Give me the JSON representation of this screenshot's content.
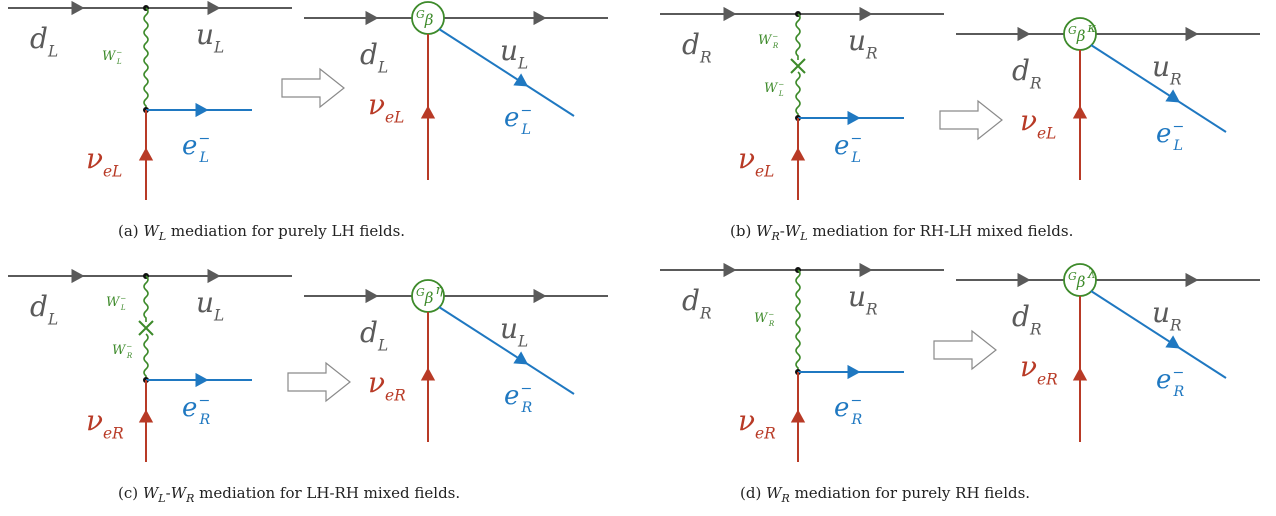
{
  "colors": {
    "quark": "#5a5a5a",
    "neutrino": "#b83a26",
    "electron": "#1f78c1",
    "boson": "#3d8a2a",
    "arrow_outline": "#8a8a8a"
  },
  "panels": [
    {
      "id": "a",
      "caption_prefix": "(a) ",
      "caption_vars": [
        {
          "base": "W",
          "sub": "L"
        }
      ],
      "caption_rest": " mediation for purely LH fields.",
      "quark_in": {
        "base": "d",
        "sub": "L"
      },
      "quark_out": {
        "base": "u",
        "sub": "L"
      },
      "boson_top": {
        "base": "W",
        "sub": "L",
        "sup": "−"
      },
      "boson_bottom": null,
      "neutrino": {
        "base": "ν",
        "sub": "eL"
      },
      "electron": {
        "base": "e",
        "sub": "L",
        "sup": "−"
      },
      "coupling_base": "G",
      "coupling_sub": "β",
      "coupling_extra": ""
    },
    {
      "id": "b",
      "caption_prefix": "(b) ",
      "caption_vars": [
        {
          "base": "W",
          "sub": "R"
        },
        {
          "base": "W",
          "sub": "L"
        }
      ],
      "caption_rest": " mediation for RH-LH mixed fields.",
      "quark_in": {
        "base": "d",
        "sub": "R"
      },
      "quark_out": {
        "base": "u",
        "sub": "R"
      },
      "boson_top": {
        "base": "W",
        "sub": "R",
        "sup": "−"
      },
      "boson_bottom": {
        "base": "W",
        "sub": "L",
        "sup": "−"
      },
      "neutrino": {
        "base": "ν",
        "sub": "eL"
      },
      "electron": {
        "base": "e",
        "sub": "L",
        "sup": "−"
      },
      "coupling_base": "G",
      "coupling_sub": "β",
      "coupling_extra": "κ"
    },
    {
      "id": "c",
      "caption_prefix": "(c) ",
      "caption_vars": [
        {
          "base": "W",
          "sub": "L"
        },
        {
          "base": "W",
          "sub": "R"
        }
      ],
      "caption_rest": " mediation for LH-RH mixed fields.",
      "quark_in": {
        "base": "d",
        "sub": "L"
      },
      "quark_out": {
        "base": "u",
        "sub": "L"
      },
      "boson_top": {
        "base": "W",
        "sub": "L",
        "sup": "−"
      },
      "boson_bottom": {
        "base": "W",
        "sub": "R",
        "sup": "−"
      },
      "neutrino": {
        "base": "ν",
        "sub": "eR"
      },
      "electron": {
        "base": "e",
        "sub": "R",
        "sup": "−"
      },
      "coupling_base": "G",
      "coupling_sub": "β",
      "coupling_extra": "η"
    },
    {
      "id": "d",
      "caption_prefix": "(d) ",
      "caption_vars": [
        {
          "base": "W",
          "sub": "R"
        }
      ],
      "caption_rest": " mediation for purely RH fields.",
      "quark_in": {
        "base": "d",
        "sub": "R"
      },
      "quark_out": {
        "base": "u",
        "sub": "R"
      },
      "boson_top": {
        "base": "W",
        "sub": "R",
        "sup": "−"
      },
      "boson_bottom": null,
      "neutrino": {
        "base": "ν",
        "sub": "eR"
      },
      "electron": {
        "base": "e",
        "sub": "R",
        "sup": "−"
      },
      "coupling_base": "G",
      "coupling_sub": "β",
      "coupling_extra": "λ"
    }
  ]
}
